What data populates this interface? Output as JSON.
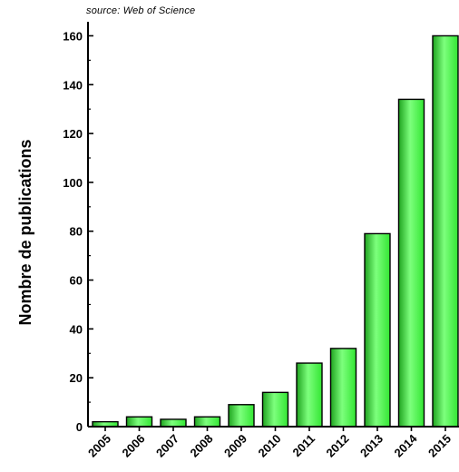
{
  "source_note": "source: Web of Science",
  "chart_data": {
    "type": "bar",
    "title": "",
    "xlabel": "",
    "ylabel": "Nombre de publications",
    "categories": [
      "2005",
      "2006",
      "2007",
      "2008",
      "2009",
      "2010",
      "2011",
      "2012",
      "2013",
      "2014",
      "2015"
    ],
    "series": [
      {
        "values": [
          2,
          4,
          3,
          4,
          9,
          14,
          26,
          32,
          79,
          134,
          160
        ]
      }
    ],
    "ylim": [
      0,
      165
    ],
    "yticks": [
      0,
      20,
      40,
      60,
      80,
      100,
      120,
      140,
      160
    ],
    "grid": false,
    "legend": "none",
    "colors": {
      "bar_fill": "#33e633",
      "bar_highlight": "#7dff7d",
      "bar_shadow": "#1fa31f",
      "bar_stroke": "#000000",
      "axis": "#000000"
    }
  }
}
